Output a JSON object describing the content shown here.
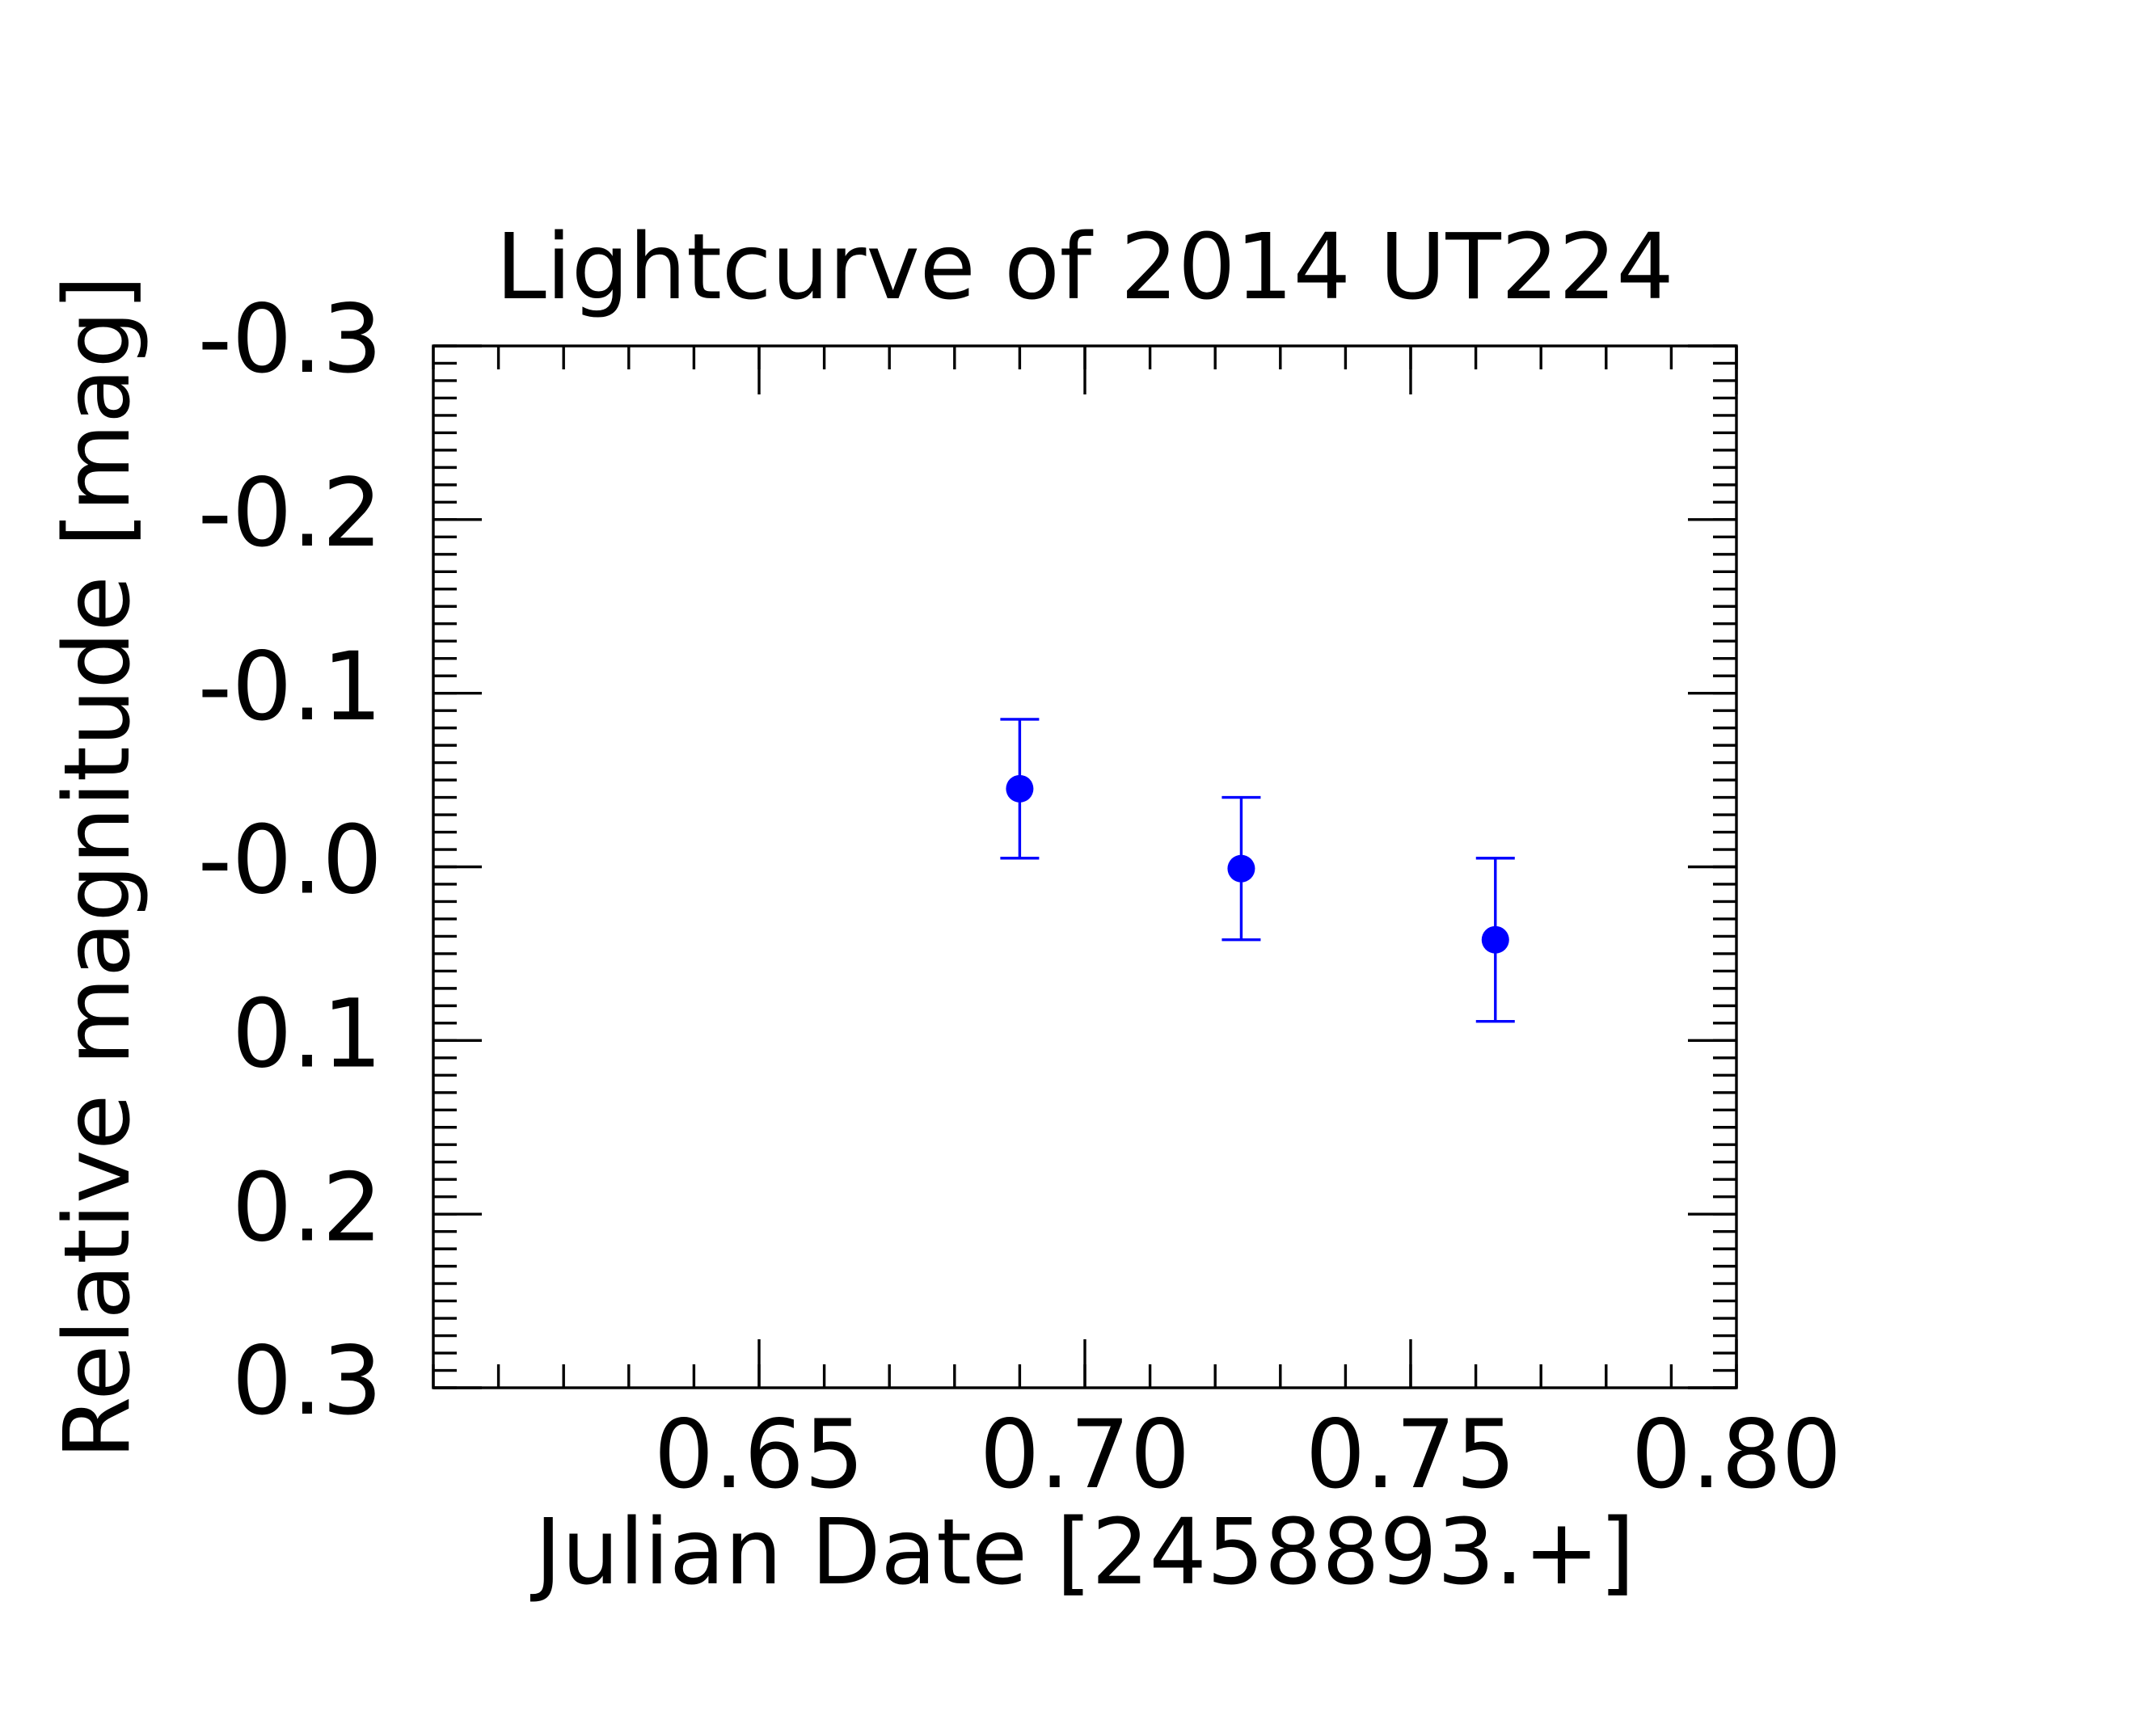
{
  "chart_data": {
    "type": "errorbar",
    "title": "Lightcurve of 2014 UT224",
    "x_label": "Julian Date [2458893.+]",
    "y_label": "Relative magnitude [mag]",
    "x": [
      0.69,
      0.724,
      0.763
    ],
    "values": [
      -0.045,
      0.001,
      0.042
    ],
    "errors": [
      0.04,
      0.041,
      0.047
    ],
    "color": "#0000ff",
    "xlim": [
      0.6,
      0.8
    ],
    "xticks": [
      0.65,
      {
        "value": 0.7,
        "label": "0.70"
      },
      0.75,
      {
        "value": 0.8,
        "label": "0.80"
      }
    ],
    "ylim": [
      0.3,
      -0.3
    ],
    "yticks": [
      -0.3,
      -0.2,
      -0.1,
      {
        "value": 0,
        "label": "-0.0"
      },
      0.1,
      0.2,
      0.3
    ],
    "xminor_step": 0.01,
    "yminor_step": 0.01,
    "grid": false
  }
}
